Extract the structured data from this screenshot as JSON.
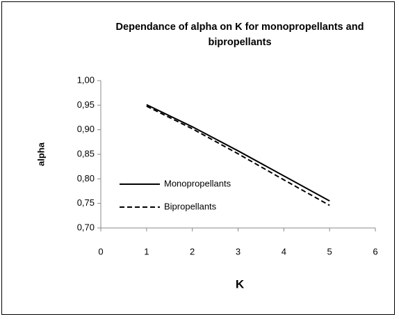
{
  "chart_data": {
    "type": "line",
    "title": "Dependance of alpha on K for monopropellants and bipropellants",
    "x_label": "K",
    "y_label": "alpha",
    "x": [
      1,
      2,
      3,
      4,
      5
    ],
    "series": [
      {
        "name": "Monopropellants",
        "color": "#000000",
        "line_style": "solid",
        "values": [
          0.951,
          0.906,
          0.857,
          0.806,
          0.755
        ]
      },
      {
        "name": "Bipropellants",
        "color": "#000000",
        "line_style": "dashed",
        "values": [
          0.948,
          0.902,
          0.851,
          0.798,
          0.746
        ]
      }
    ],
    "xlim": [
      0,
      6
    ],
    "xticks": [
      0,
      1,
      2,
      3,
      4,
      5,
      6
    ],
    "ylim": [
      0.7,
      1.0
    ],
    "yticks": [
      {
        "value": 0.7,
        "label": "0,70"
      },
      {
        "value": 0.75,
        "label": "0,75"
      },
      {
        "value": 0.8,
        "label": "0,80"
      },
      {
        "value": 0.85,
        "label": "0,85"
      },
      {
        "value": 0.9,
        "label": "0,90"
      },
      {
        "value": 0.95,
        "label": "0,95"
      },
      {
        "value": 1.0,
        "label": "1,00"
      }
    ],
    "grid": false,
    "legend": "left"
  }
}
